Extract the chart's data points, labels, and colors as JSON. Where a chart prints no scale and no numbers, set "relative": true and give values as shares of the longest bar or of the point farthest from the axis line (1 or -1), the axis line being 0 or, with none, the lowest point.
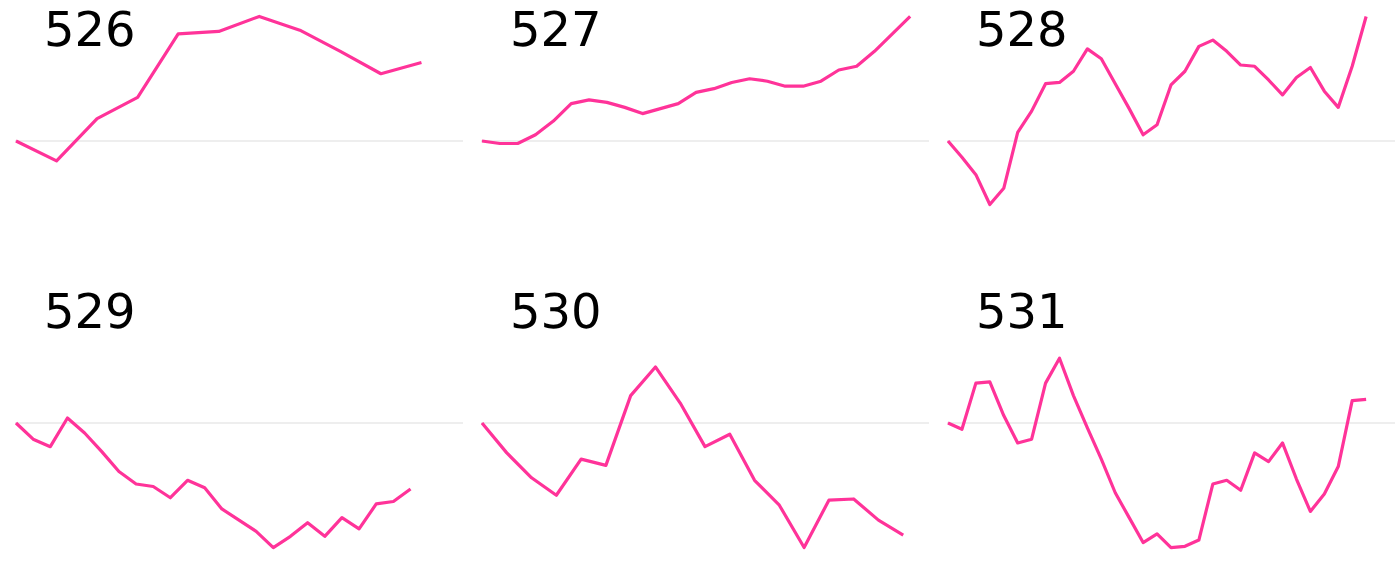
{
  "chart_data": [
    {
      "type": "line",
      "title": "526",
      "relative": true,
      "marker": "none",
      "categories": [
        null,
        null,
        null,
        null,
        null,
        null,
        null,
        null,
        null,
        null,
        null,
        null
      ],
      "series": [
        {
          "color": "#ff3399",
          "values": [
            0,
            -0.16,
            0.18,
            0.35,
            0.86,
            0.88,
            1,
            0.89,
            0.72,
            0.54,
            0.63,
            null
          ]
        }
      ]
    },
    {
      "type": "line",
      "title": "527",
      "relative": true,
      "marker": "none",
      "categories": [
        null,
        null,
        null,
        null,
        null,
        null,
        null,
        null,
        null,
        null,
        null,
        null,
        null,
        null,
        null,
        null,
        null,
        null,
        null,
        null,
        null,
        null,
        null,
        null,
        null,
        null
      ],
      "series": [
        {
          "color": "#ff3399",
          "values": [
            0,
            -0.02,
            -0.02,
            0.05,
            0.16,
            0.3,
            0.33,
            0.31,
            0.27,
            0.22,
            0.26,
            0.3,
            0.39,
            0.42,
            0.47,
            0.5,
            0.48,
            0.44,
            0.44,
            0.48,
            0.57,
            0.6,
            0.72,
            0.86,
            1,
            null
          ]
        }
      ]
    },
    {
      "type": "line",
      "title": "528",
      "relative": true,
      "marker": "none",
      "categories": [
        null,
        null,
        null,
        null,
        null,
        null,
        null,
        null,
        null,
        null,
        null,
        null,
        null,
        null,
        null,
        null,
        null,
        null,
        null,
        null,
        null,
        null,
        null,
        null,
        null,
        null,
        null,
        null,
        null,
        null,
        null,
        null,
        null
      ],
      "series": [
        {
          "color": "#ff3399",
          "values": [
            0,
            -0.13,
            -0.27,
            -0.51,
            -0.38,
            0.07,
            0.24,
            0.46,
            0.47,
            0.56,
            0.74,
            0.66,
            0.46,
            0.26,
            0.05,
            0.13,
            0.45,
            0.56,
            0.76,
            0.81,
            0.72,
            0.61,
            0.6,
            0.49,
            0.37,
            0.51,
            0.59,
            0.4,
            0.27,
            0.6,
            1,
            null,
            null
          ]
        }
      ]
    },
    {
      "type": "line",
      "title": "529",
      "relative": true,
      "marker": "none",
      "categories": [
        null,
        null,
        null,
        null,
        null,
        null,
        null,
        null,
        null,
        null,
        null,
        null,
        null,
        null,
        null,
        null,
        null,
        null,
        null,
        null,
        null,
        null,
        null,
        null,
        null,
        null,
        null
      ],
      "series": [
        {
          "color": "#ff3399",
          "values": [
            0,
            -0.13,
            -0.19,
            0.04,
            -0.08,
            -0.23,
            -0.39,
            -0.49,
            -0.51,
            -0.6,
            -0.46,
            -0.52,
            -0.69,
            -0.78,
            -0.87,
            -1,
            -0.91,
            -0.8,
            -0.91,
            -0.76,
            -0.85,
            -0.65,
            -0.63,
            -0.53,
            null,
            null,
            null
          ]
        }
      ]
    },
    {
      "type": "line",
      "title": "530",
      "relative": true,
      "marker": "none",
      "categories": [
        null,
        null,
        null,
        null,
        null,
        null,
        null,
        null,
        null,
        null,
        null,
        null,
        null,
        null,
        null,
        null,
        null,
        null,
        null
      ],
      "series": [
        {
          "color": "#ff3399",
          "values": [
            0,
            -0.24,
            -0.44,
            -0.58,
            -0.29,
            -0.34,
            0.22,
            0.45,
            0.16,
            -0.19,
            -0.09,
            -0.46,
            -0.66,
            -1,
            -0.62,
            -0.61,
            -0.78,
            -0.9,
            null
          ]
        }
      ]
    },
    {
      "type": "line",
      "title": "531",
      "relative": true,
      "marker": "none",
      "categories": [
        null,
        null,
        null,
        null,
        null,
        null,
        null,
        null,
        null,
        null,
        null,
        null,
        null,
        null,
        null,
        null,
        null,
        null,
        null,
        null,
        null,
        null,
        null,
        null,
        null,
        null,
        null,
        null,
        null,
        null,
        null,
        null,
        null
      ],
      "series": [
        {
          "color": "#ff3399",
          "values": [
            0,
            -0.05,
            0.32,
            0.33,
            0.06,
            -0.16,
            -0.13,
            0.32,
            0.52,
            0.22,
            -0.04,
            -0.29,
            -0.56,
            -0.76,
            -0.96,
            -0.89,
            -1,
            -0.99,
            -0.94,
            -0.49,
            -0.46,
            -0.54,
            -0.24,
            -0.31,
            -0.16,
            -0.45,
            -0.71,
            -0.57,
            -0.35,
            0.18,
            0.19,
            null,
            null
          ]
        }
      ]
    }
  ]
}
